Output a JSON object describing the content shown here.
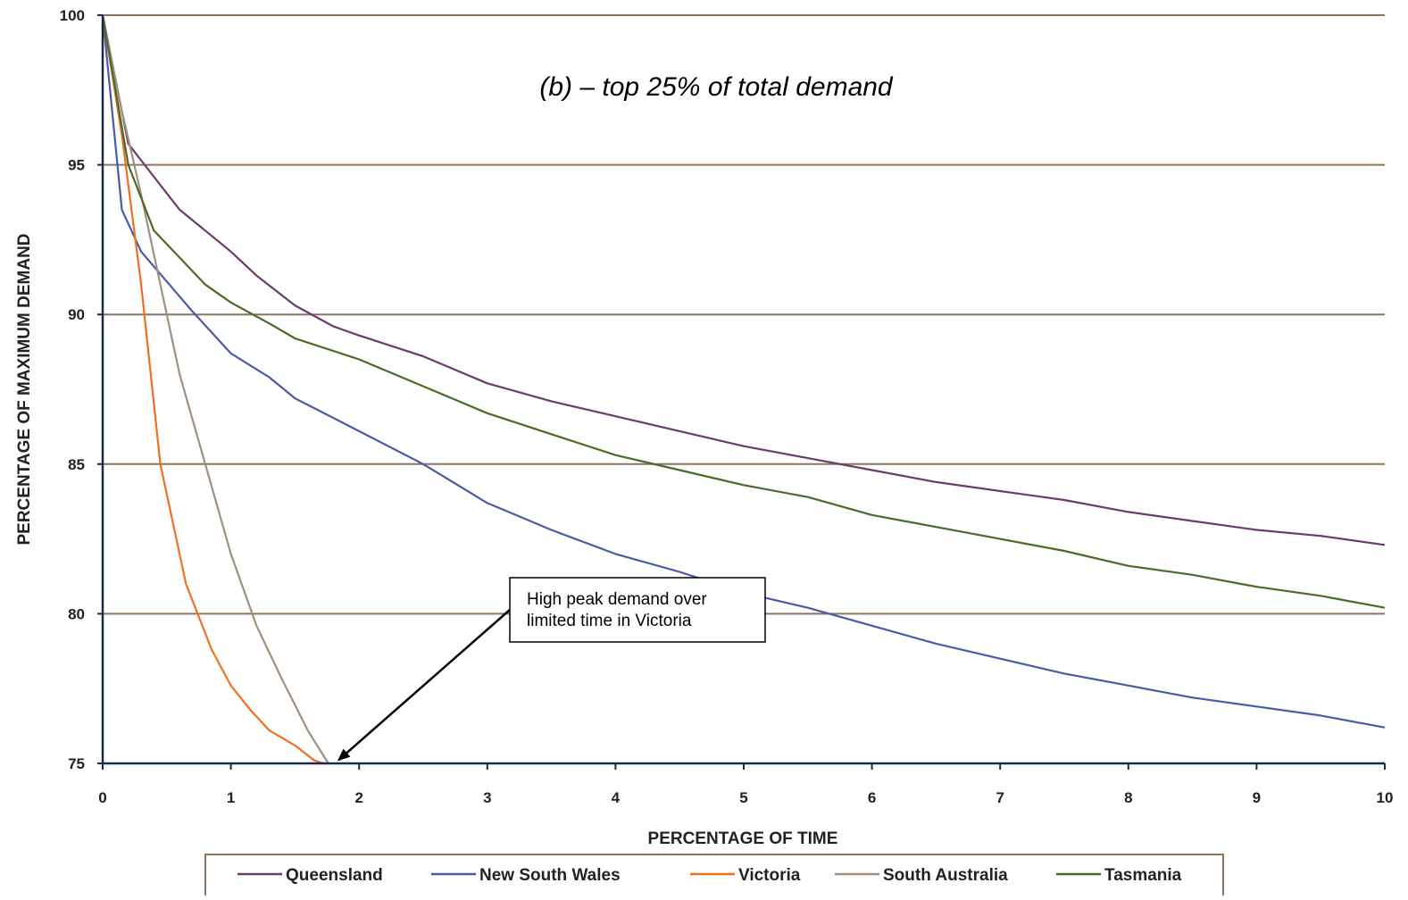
{
  "chart_data": {
    "type": "line",
    "title": "(b) – top 25% of total demand",
    "xlabel": "PERCENTAGE OF TIME",
    "ylabel": "PERCENTAGE OF MAXIMUM DEMAND",
    "xlim": [
      0,
      10
    ],
    "ylim": [
      75,
      100
    ],
    "x_ticks": [
      "0",
      "1",
      "2",
      "3",
      "4",
      "5",
      "6",
      "7",
      "8",
      "9",
      "10"
    ],
    "y_ticks": [
      "75",
      "80",
      "85",
      "90",
      "95",
      "100"
    ],
    "grid": "horizontal",
    "legend_position": "bottom",
    "colors": {
      "grid": "#8a7660",
      "axis": "#1a2a4a",
      "queensland": "#6e3a6e",
      "nsw": "#4a5aa8",
      "victoria": "#f07020",
      "south_australia": "#a09080",
      "tasmania": "#4a6a28"
    },
    "series": [
      {
        "name": "Queensland",
        "color": "#6e3a6e",
        "points": [
          [
            0,
            100
          ],
          [
            0.2,
            95.7
          ],
          [
            0.4,
            94.6
          ],
          [
            0.6,
            93.5
          ],
          [
            0.8,
            92.8
          ],
          [
            1,
            92.1
          ],
          [
            1.2,
            91.3
          ],
          [
            1.5,
            90.3
          ],
          [
            1.8,
            89.6
          ],
          [
            2,
            89.3
          ],
          [
            2.5,
            88.6
          ],
          [
            3,
            87.7
          ],
          [
            3.5,
            87.1
          ],
          [
            4,
            86.6
          ],
          [
            4.5,
            86.1
          ],
          [
            5,
            85.6
          ],
          [
            5.5,
            85.2
          ],
          [
            6,
            84.8
          ],
          [
            6.5,
            84.4
          ],
          [
            7,
            84.1
          ],
          [
            7.5,
            83.8
          ],
          [
            8,
            83.4
          ],
          [
            8.5,
            83.1
          ],
          [
            9,
            82.8
          ],
          [
            9.5,
            82.6
          ],
          [
            10,
            82.3
          ]
        ]
      },
      {
        "name": "New South Wales",
        "color": "#4a5aa8",
        "points": [
          [
            0,
            100
          ],
          [
            0.15,
            93.5
          ],
          [
            0.3,
            92.1
          ],
          [
            0.5,
            91.1
          ],
          [
            0.7,
            90.1
          ],
          [
            1,
            88.7
          ],
          [
            1.3,
            87.9
          ],
          [
            1.5,
            87.2
          ],
          [
            2,
            86.1
          ],
          [
            2.5,
            85
          ],
          [
            3,
            83.7
          ],
          [
            3.5,
            82.8
          ],
          [
            4,
            82
          ],
          [
            4.5,
            81.4
          ],
          [
            5,
            80.7
          ],
          [
            5.5,
            80.2
          ],
          [
            6,
            79.6
          ],
          [
            6.5,
            79
          ],
          [
            7,
            78.5
          ],
          [
            7.5,
            78
          ],
          [
            8,
            77.6
          ],
          [
            8.5,
            77.2
          ],
          [
            9,
            76.9
          ],
          [
            9.5,
            76.6
          ],
          [
            10,
            76.2
          ]
        ]
      },
      {
        "name": "Victoria",
        "color": "#f07020",
        "points": [
          [
            0,
            100
          ],
          [
            0.15,
            96
          ],
          [
            0.3,
            91
          ],
          [
            0.45,
            85
          ],
          [
            0.65,
            81
          ],
          [
            0.85,
            78.8
          ],
          [
            1,
            77.6
          ],
          [
            1.15,
            76.8
          ],
          [
            1.3,
            76.1
          ],
          [
            1.5,
            75.6
          ],
          [
            1.65,
            75.1
          ],
          [
            1.72,
            75
          ]
        ]
      },
      {
        "name": "South Australia",
        "color": "#a09080",
        "points": [
          [
            0,
            100
          ],
          [
            0.15,
            96.8
          ],
          [
            0.3,
            94
          ],
          [
            0.45,
            91
          ],
          [
            0.6,
            88
          ],
          [
            0.8,
            85
          ],
          [
            1,
            82
          ],
          [
            1.2,
            79.6
          ],
          [
            1.4,
            77.8
          ],
          [
            1.6,
            76.1
          ],
          [
            1.76,
            75
          ]
        ]
      },
      {
        "name": "Tasmania",
        "color": "#4a6a28",
        "points": [
          [
            0,
            100
          ],
          [
            0.2,
            95
          ],
          [
            0.4,
            92.8
          ],
          [
            0.6,
            91.9
          ],
          [
            0.8,
            91
          ],
          [
            1,
            90.4
          ],
          [
            1.3,
            89.7
          ],
          [
            1.5,
            89.2
          ],
          [
            2,
            88.5
          ],
          [
            2.5,
            87.6
          ],
          [
            3,
            86.7
          ],
          [
            3.5,
            86
          ],
          [
            4,
            85.3
          ],
          [
            4.5,
            84.8
          ],
          [
            5,
            84.3
          ],
          [
            5.5,
            83.9
          ],
          [
            6,
            83.3
          ],
          [
            6.5,
            82.9
          ],
          [
            7,
            82.5
          ],
          [
            7.5,
            82.1
          ],
          [
            8,
            81.6
          ],
          [
            8.5,
            81.3
          ],
          [
            9,
            80.9
          ],
          [
            9.5,
            80.6
          ],
          [
            10,
            80.2
          ]
        ]
      }
    ],
    "annotations": [
      {
        "lines": [
          "High peak demand over",
          "limited time in Victoria"
        ],
        "arrow_to": [
          1.8,
          75
        ]
      }
    ]
  }
}
